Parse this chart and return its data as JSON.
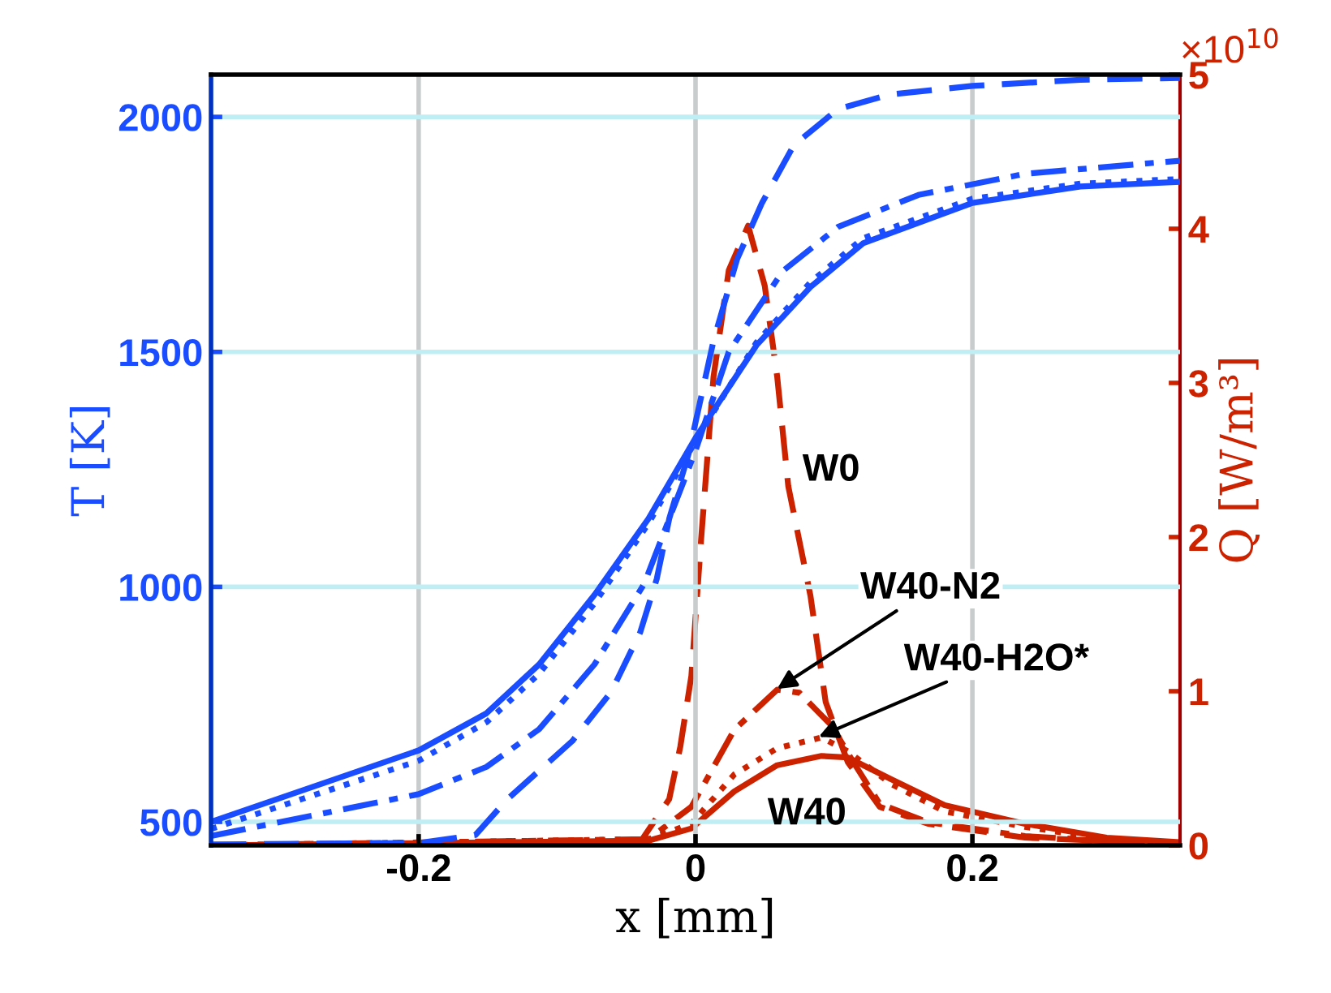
{
  "chart_data": {
    "type": "line",
    "xlabel": "x [mm]",
    "ylabel": "T [K]",
    "y2label": "Q [W/m³]",
    "xlim": [
      -0.35,
      0.35
    ],
    "xticks": [
      -0.2,
      0,
      0.2
    ],
    "ylim": [
      450,
      2090
    ],
    "yticks": [
      500,
      1000,
      1500,
      2000
    ],
    "y2lim": [
      0,
      5
    ],
    "y2ticks": [
      0,
      1,
      2,
      3,
      4,
      5
    ],
    "grid": true,
    "marker": "none",
    "series": [
      {
        "color": "#1a4dff",
        "line_style": "dashed",
        "x": [
          -0.35,
          -0.2,
          -0.159,
          -0.136,
          -0.089,
          -0.061,
          -0.04,
          -0.028,
          -0.019,
          -0.005,
          0.013,
          0.03,
          0.048,
          0.071,
          0.103,
          0.141,
          0.2,
          0.278,
          0.35
        ],
        "values": [
          452,
          455,
          472,
          548,
          672,
          776,
          903,
          1017,
          1145,
          1283,
          1524,
          1697,
          1817,
          1940,
          2017,
          2048,
          2066,
          2079,
          2083
        ]
      },
      {
        "color": "#1a4dff",
        "line_style": "dashdot",
        "x": [
          -0.35,
          -0.2,
          -0.151,
          -0.113,
          -0.073,
          -0.037,
          0.0,
          0.024,
          0.063,
          0.103,
          0.161,
          0.238,
          0.35
        ],
        "values": [
          470,
          559,
          617,
          697,
          835,
          1007,
          1290,
          1500,
          1672,
          1766,
          1834,
          1879,
          1907
        ]
      },
      {
        "color": "#1a4dff",
        "line_style": "dotted",
        "x": [
          -0.35,
          -0.2,
          -0.151,
          -0.113,
          -0.073,
          -0.034,
          0.0,
          0.044,
          0.083,
          0.121,
          0.2,
          0.278,
          0.35
        ],
        "values": [
          485,
          630,
          712,
          815,
          965,
          1135,
          1310,
          1520,
          1648,
          1742,
          1826,
          1858,
          1868
        ]
      },
      {
        "color": "#1a4dff",
        "line_style": "solid",
        "x": [
          -0.35,
          -0.2,
          -0.151,
          -0.113,
          -0.073,
          -0.034,
          0.0,
          0.044,
          0.083,
          0.121,
          0.2,
          0.278,
          0.35
        ],
        "values": [
          500,
          652,
          731,
          835,
          983,
          1145,
          1317,
          1514,
          1638,
          1731,
          1817,
          1852,
          1862
        ]
      },
      {
        "color": "#cc2200",
        "line_style": "dashed",
        "axis": "y2",
        "x": [
          -0.35,
          -0.04,
          -0.019,
          -0.011,
          -0.003,
          0.004,
          0.013,
          0.024,
          0.038,
          0.05,
          0.059,
          0.067,
          0.083,
          0.094,
          0.11,
          0.133,
          0.168,
          0.238,
          0.35
        ],
        "values": [
          0,
          0.02,
          0.3,
          0.64,
          1.1,
          1.98,
          3.04,
          3.73,
          4.02,
          3.63,
          3.04,
          2.33,
          1.62,
          0.93,
          0.54,
          0.25,
          0.14,
          0.05,
          0.01
        ]
      },
      {
        "color": "#cc2200",
        "line_style": "dashdot",
        "axis": "y2",
        "x": [
          -0.35,
          -0.034,
          -0.003,
          0.028,
          0.059,
          0.075,
          0.098,
          0.114,
          0.133,
          0.168,
          0.238,
          0.35
        ],
        "values": [
          0,
          0.04,
          0.25,
          0.75,
          1.01,
          0.99,
          0.78,
          0.54,
          0.27,
          0.15,
          0.06,
          0.0
        ]
      },
      {
        "color": "#cc2200",
        "line_style": "dotted",
        "axis": "y2",
        "x": [
          -0.35,
          -0.034,
          -0.003,
          0.028,
          0.059,
          0.091,
          0.11,
          0.141,
          0.18,
          0.238,
          0.297,
          0.35
        ],
        "values": [
          0,
          0.04,
          0.14,
          0.46,
          0.63,
          0.7,
          0.61,
          0.4,
          0.22,
          0.12,
          0.04,
          0.01
        ]
      },
      {
        "color": "#cc2200",
        "line_style": "solid",
        "axis": "y2",
        "x": [
          -0.35,
          -0.034,
          -0.003,
          0.028,
          0.059,
          0.091,
          0.11,
          0.141,
          0.18,
          0.238,
          0.297,
          0.35
        ],
        "values": [
          0,
          0.03,
          0.11,
          0.35,
          0.52,
          0.58,
          0.57,
          0.43,
          0.26,
          0.14,
          0.05,
          0.02
        ]
      }
    ],
    "annotations": [
      "×10$^{10}$",
      "W0",
      {
        "text": "W40-N2",
        "x": 0.059,
        "y": 783
      },
      {
        "text": "W40-H2O*",
        "x": 0.089,
        "y": 681
      },
      "W40"
    ]
  }
}
